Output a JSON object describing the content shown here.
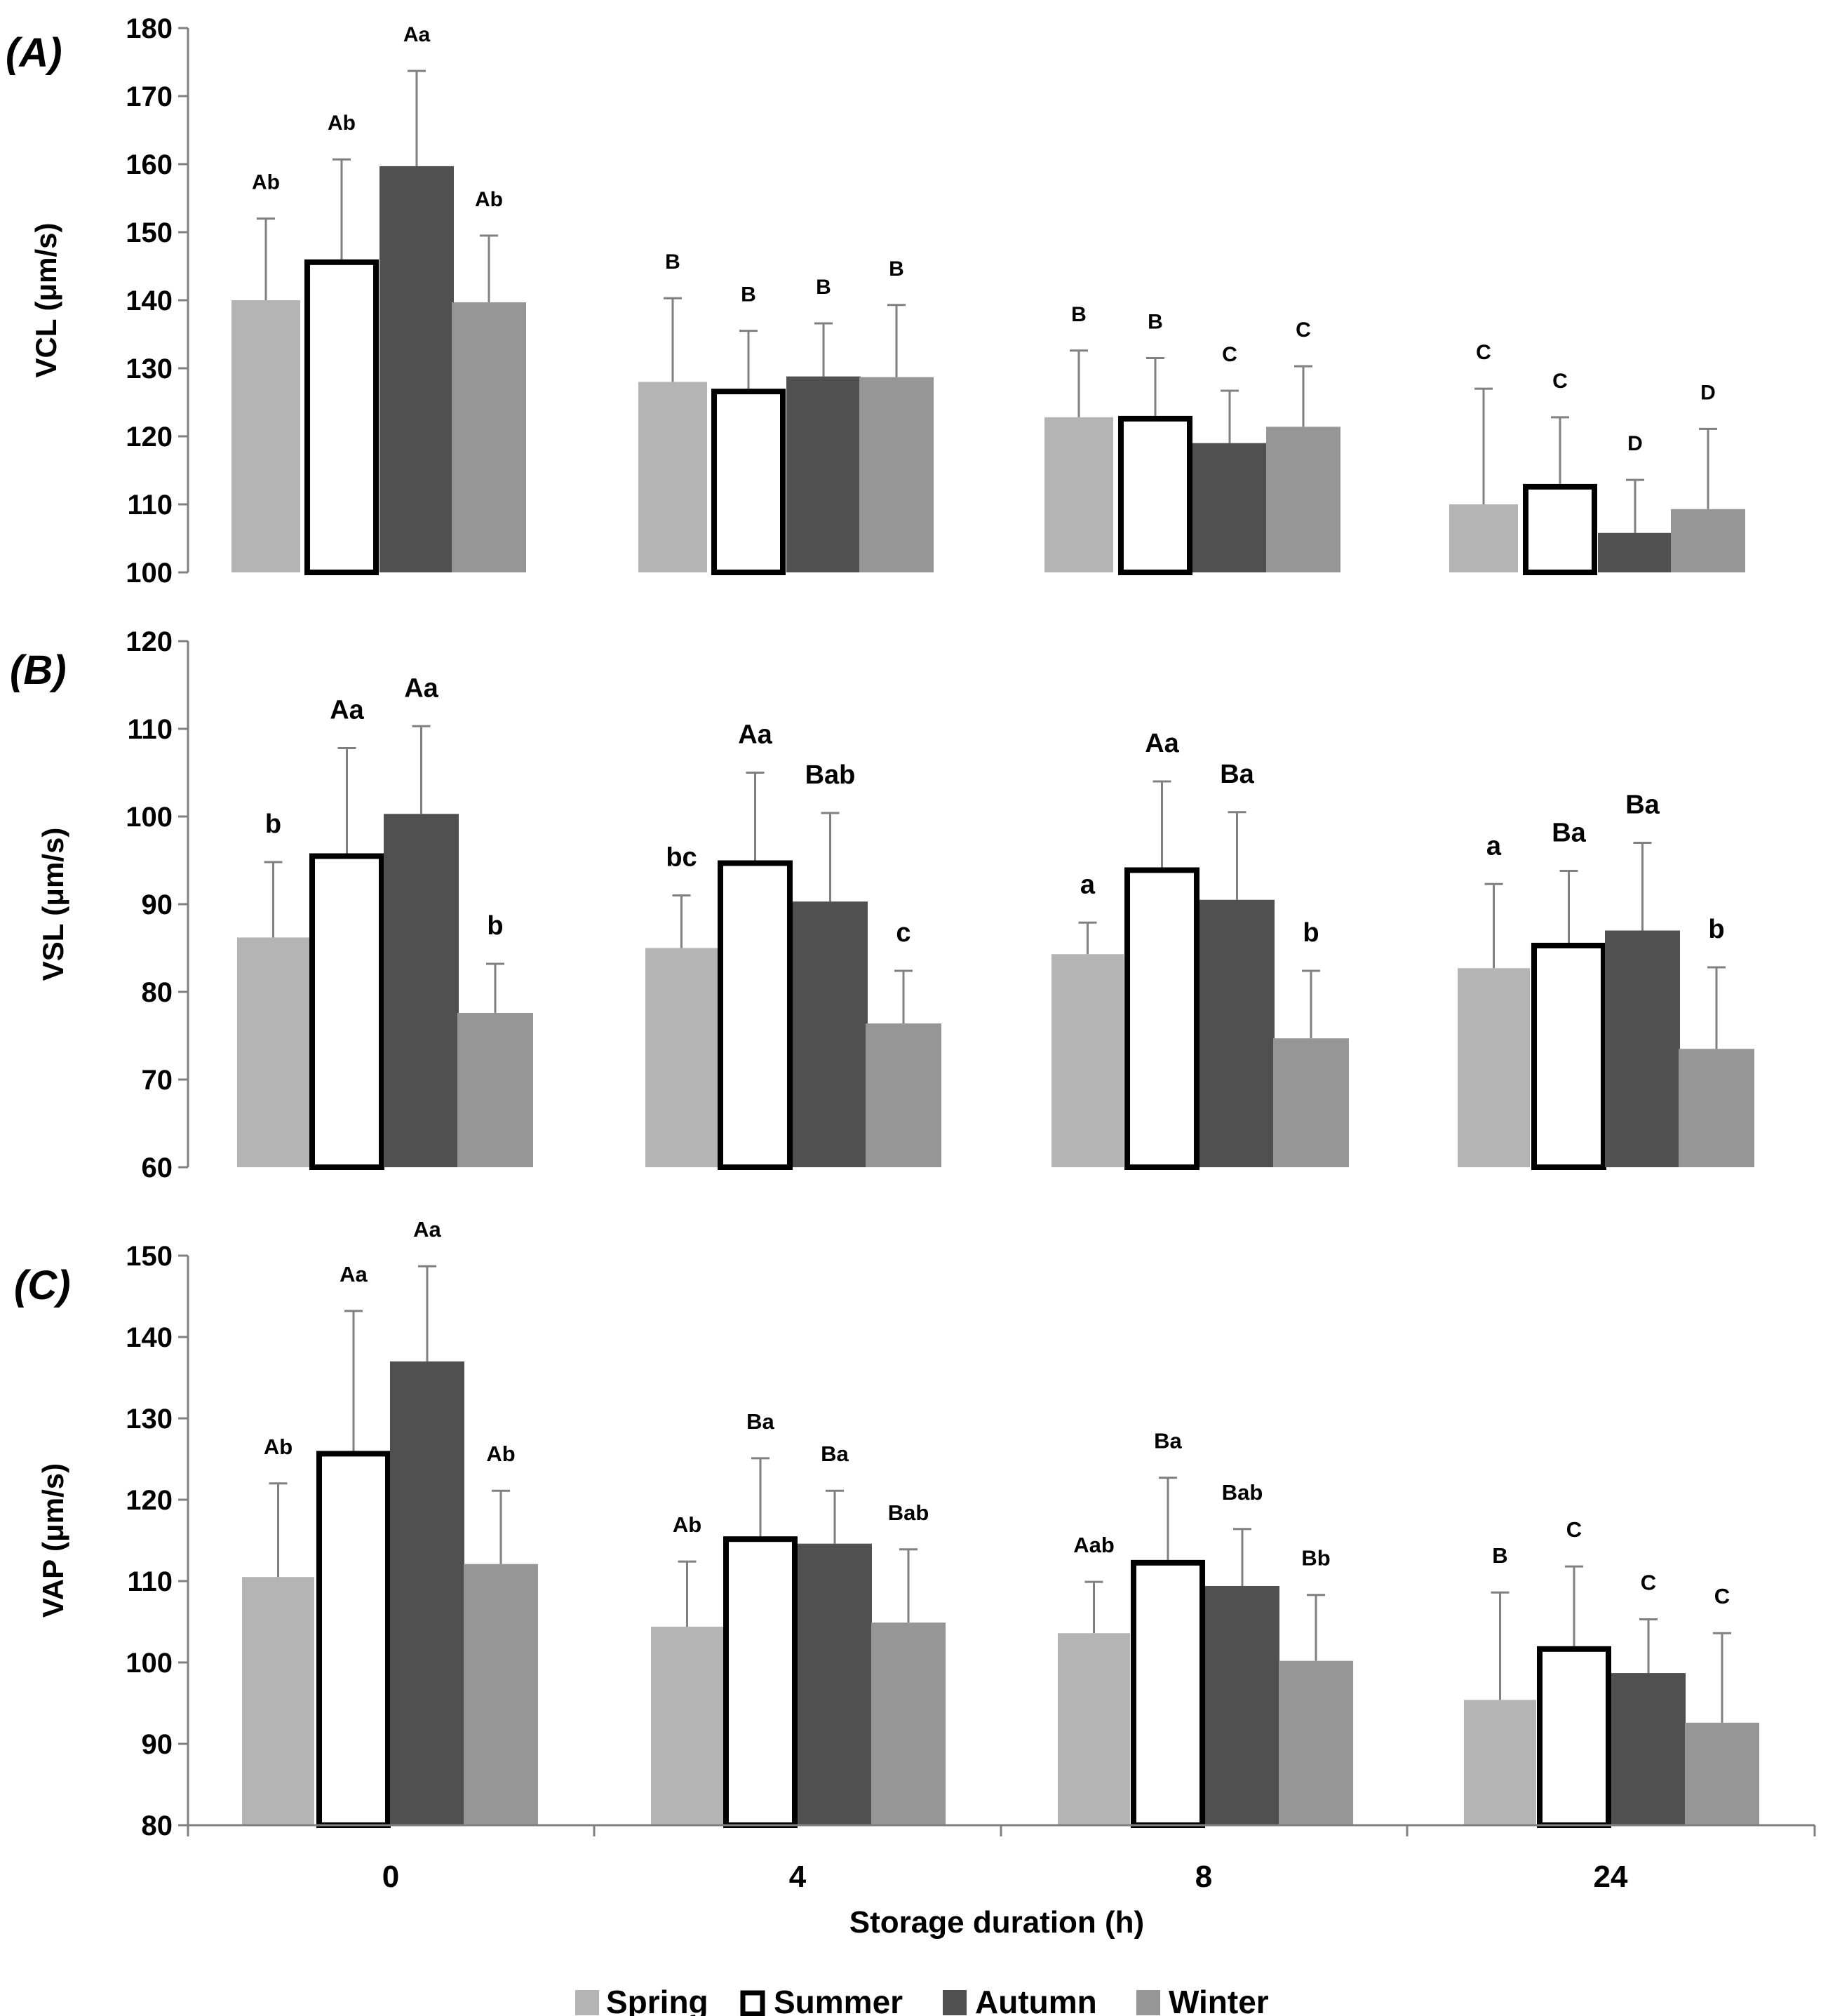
{
  "chart_data": {
    "type": "bar",
    "xlabel": "Storage duration (h)",
    "categories": [
      "0",
      "4",
      "8",
      "24"
    ],
    "series_names": [
      "Spring",
      "Summer",
      "Autumn",
      "Winter"
    ],
    "colors": {
      "Spring": "#b4b4b4",
      "Summer": "#ffffff",
      "Autumn": "#505050",
      "Winter": "#969696",
      "summer_outline": "#000000",
      "axis": "#808080",
      "error_bar": "#808080"
    },
    "legend": {
      "position": "bottom-center",
      "entries": [
        "Spring",
        "Summer",
        "Autumn",
        "Winter"
      ]
    },
    "panels": [
      {
        "label": "(A)",
        "ylabel": "VCL (μm/s)",
        "ylim": [
          100,
          180
        ],
        "yticks": [
          100,
          110,
          120,
          130,
          140,
          150,
          160,
          170,
          180
        ],
        "series": [
          {
            "name": "Spring",
            "values": [
              140,
              128,
              122.8,
              110
            ],
            "errors": [
              12,
              12.3,
              9.8,
              17
            ],
            "labels": [
              "Ab",
              "B",
              "B",
              "C"
            ]
          },
          {
            "name": "Summer",
            "values": [
              146,
              127,
              123,
              113
            ],
            "errors": [
              14.7,
              8.5,
              8.5,
              9.8
            ],
            "labels": [
              "Ab",
              "B",
              "B",
              "C"
            ]
          },
          {
            "name": "Autumn",
            "values": [
              159.7,
              128.8,
              119,
              105.8
            ],
            "errors": [
              14,
              7.8,
              7.7,
              7.8
            ],
            "labels": [
              "Aa",
              "B",
              "C",
              "D"
            ]
          },
          {
            "name": "Winter",
            "values": [
              139.7,
              128.7,
              121.4,
              109.3
            ],
            "errors": [
              9.8,
              10.6,
              8.9,
              11.8
            ],
            "labels": [
              "Ab",
              "B",
              "C",
              "D"
            ]
          }
        ]
      },
      {
        "label": "(B)",
        "ylabel": "VSL (μm/s)",
        "ylim": [
          60,
          120
        ],
        "yticks": [
          60,
          70,
          80,
          90,
          100,
          110,
          120
        ],
        "series": [
          {
            "name": "Spring",
            "values": [
              86.2,
              85,
              84.3,
              82.7
            ],
            "errors": [
              8.6,
              6,
              3.6,
              9.6
            ],
            "labels": [
              "b",
              "bc",
              "a",
              "a"
            ]
          },
          {
            "name": "Summer",
            "values": [
              95.8,
              95,
              94.2,
              85.6
            ],
            "errors": [
              12,
              10,
              9.8,
              8.2
            ],
            "labels": [
              "Aa",
              "Aa",
              "Aa",
              "Ba"
            ]
          },
          {
            "name": "Autumn",
            "values": [
              100.3,
              90.3,
              90.5,
              87
            ],
            "errors": [
              10,
              10.1,
              10,
              10
            ],
            "labels": [
              "Aa",
              "Bab",
              "Ba",
              "Ba"
            ]
          },
          {
            "name": "Winter",
            "values": [
              77.6,
              76.4,
              74.7,
              73.5
            ],
            "errors": [
              5.6,
              6,
              7.7,
              9.3
            ],
            "labels": [
              "b",
              "c",
              "b",
              "b"
            ]
          }
        ]
      },
      {
        "label": "(C)",
        "ylabel": "VAP (μm/s)",
        "ylim": [
          80,
          150
        ],
        "yticks": [
          80,
          90,
          100,
          110,
          120,
          130,
          140,
          150
        ],
        "series": [
          {
            "name": "Spring",
            "values": [
              110.5,
              104.4,
              103.6,
              95.4
            ],
            "errors": [
              11.5,
              8,
              6.3,
              13.2
            ],
            "labels": [
              "Ab",
              "Ab",
              "Aab",
              "B"
            ]
          },
          {
            "name": "Summer",
            "values": [
              126,
              115.5,
              112.6,
              102
            ],
            "errors": [
              17.2,
              9.6,
              10.1,
              9.8
            ],
            "labels": [
              "Aa",
              "Ba",
              "Ba",
              "C"
            ]
          },
          {
            "name": "Autumn",
            "values": [
              137,
              114.6,
              109.4,
              98.7
            ],
            "errors": [
              11.7,
              6.5,
              7,
              6.6
            ],
            "labels": [
              "Aa",
              "Ba",
              "Bab",
              "C"
            ]
          },
          {
            "name": "Winter",
            "values": [
              112.1,
              104.9,
              100.2,
              92.6
            ],
            "errors": [
              9,
              9,
              8.1,
              11
            ],
            "labels": [
              "Ab",
              "Bab",
              "Bb",
              "C"
            ]
          }
        ]
      }
    ]
  }
}
